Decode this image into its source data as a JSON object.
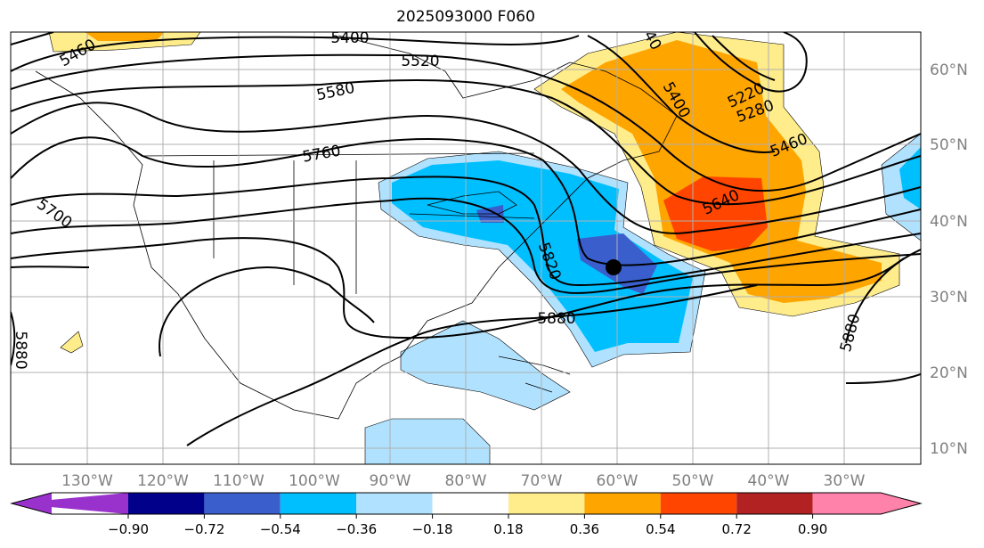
{
  "title": "2025093000 F060",
  "map": {
    "lon_labels": [
      "130°W",
      "120°W",
      "110°W",
      "100°W",
      "90°W",
      "80°W",
      "70°W",
      "60°W",
      "50°W",
      "40°W",
      "30°W"
    ],
    "lat_labels": [
      "60°N",
      "50°N",
      "40°N",
      "30°N",
      "20°N",
      "10°N"
    ],
    "contour_labels": [
      "5400",
      "5460",
      "5520",
      "5580",
      "5760",
      "5700",
      "5820",
      "5880",
      "5400",
      "5220",
      "5280",
      "5460",
      "5640",
      "5880",
      "5880",
      "40"
    ],
    "marker": "storm-center-dot"
  },
  "colorbar": {
    "colors": [
      "#9932cc",
      "#00008b",
      "#3a5fcd",
      "#00bfff",
      "#b0e2ff",
      "#ffffff",
      "#ffec8b",
      "#ffa500",
      "#ff4500",
      "#b22222",
      "#ff82ab"
    ],
    "ticks": [
      "−0.90",
      "−0.72",
      "−0.54",
      "−0.36",
      "−0.18",
      "0.18",
      "0.36",
      "0.54",
      "0.72",
      "0.90"
    ]
  }
}
